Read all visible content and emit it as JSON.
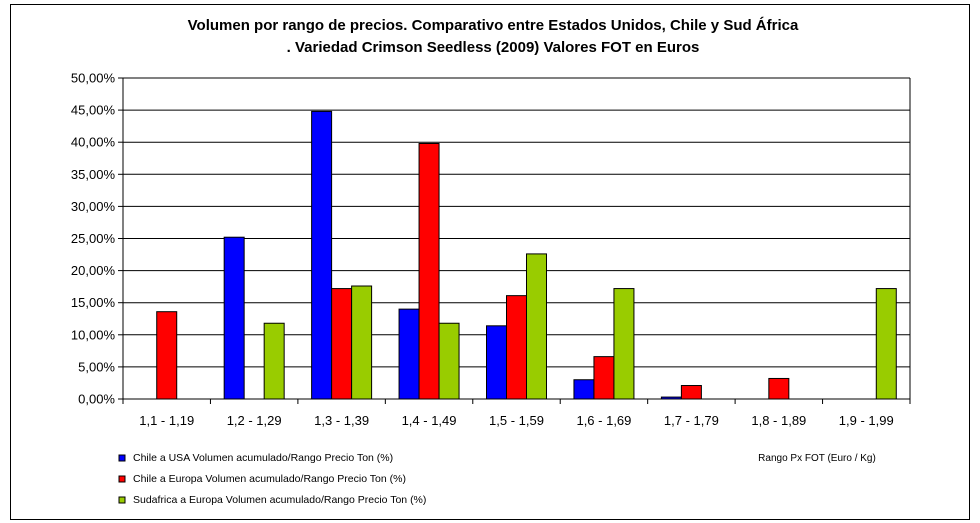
{
  "chart_data": {
    "type": "bar",
    "title": [
      "Volumen por rango de precios. Comparativo entre Estados Unidos, Chile y Sud África",
      ". Variedad Crimson Seedless (2009) Valores FOT en Euros"
    ],
    "xlabel": "Rango Px  FOT (Euro / Kg)",
    "ylabel": "",
    "categories": [
      "1,1 - 1,19",
      "1,2 - 1,29",
      "1,3 - 1,39",
      "1,4 - 1,49",
      "1,5 - 1,59",
      "1,6 - 1,69",
      "1,7 - 1,79",
      "1,8 - 1,89",
      "1,9 - 1,99"
    ],
    "series": [
      {
        "name": "Chile a USA Volumen acumulado/Rango Precio Ton (%)",
        "color": "#0000ff",
        "values": [
          0,
          25.2,
          44.8,
          14.0,
          11.4,
          3.0,
          0.3,
          0,
          0
        ]
      },
      {
        "name": "Chile a Europa Volumen acumulado/Rango Precio Ton (%)",
        "color": "#ff0000",
        "values": [
          13.6,
          0,
          17.2,
          39.8,
          16.1,
          6.6,
          2.1,
          3.2,
          0
        ]
      },
      {
        "name": "Sudafrica a Europa Volumen acumulado/Rango Precio Ton (%)",
        "color": "#99cc00",
        "values": [
          0,
          11.8,
          17.6,
          11.8,
          22.6,
          17.2,
          0,
          0,
          17.2
        ]
      }
    ],
    "ylim": [
      0,
      50
    ],
    "yticks": [
      "0,00%",
      "5,00%",
      "10,00%",
      "15,00%",
      "20,00%",
      "25,00%",
      "30,00%",
      "35,00%",
      "40,00%",
      "45,00%",
      "50,00%"
    ],
    "grid": true,
    "legend_position": "bottom-left"
  }
}
